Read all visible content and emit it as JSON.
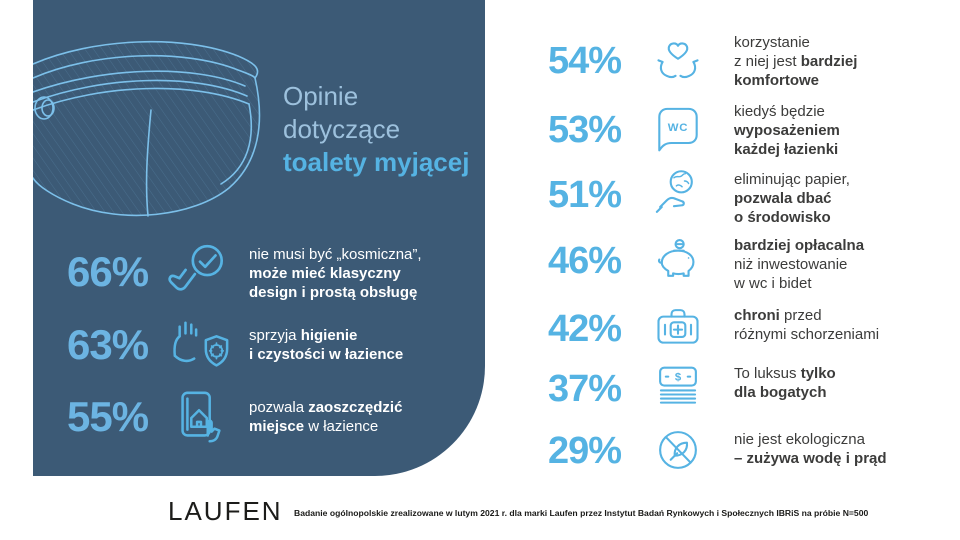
{
  "colors": {
    "panel_bg": "#3c5a76",
    "accent": "#56b3e3",
    "panel_pct": "#6cb4e2",
    "title_muted": "#9dc1dd",
    "body_text": "#3c3c3b",
    "footer_text": "#1a1a18"
  },
  "panel": {
    "title_lines": [
      "Opinie",
      "dotyczące"
    ],
    "title_bold": "toalety myjącej",
    "stats": [
      {
        "pct": "66%",
        "icon": "click-check-icon",
        "lines": [
          [
            {
              "t": "nie musi być „kosmiczna”,",
              "b": false
            }
          ],
          [
            {
              "t": "może mieć klasyczny",
              "b": true
            }
          ],
          [
            {
              "t": "design i prostą obsługę",
              "b": true
            }
          ]
        ]
      },
      {
        "pct": "63%",
        "icon": "hand-shield-icon",
        "lines": [
          [
            {
              "t": "sprzyja ",
              "b": false
            },
            {
              "t": "higienie",
              "b": true
            }
          ],
          [
            {
              "t": "i czystości w łazience",
              "b": true
            }
          ]
        ]
      },
      {
        "pct": "55%",
        "icon": "phone-house-icon",
        "lines": [
          [
            {
              "t": "pozwala ",
              "b": false
            },
            {
              "t": "zaoszczędzić",
              "b": true
            }
          ],
          [
            {
              "t": "miejsce",
              "b": true
            },
            {
              "t": " w łazience",
              "b": false
            }
          ]
        ]
      }
    ]
  },
  "right_stats": [
    {
      "pct": "54%",
      "icon": "hands-heart-icon",
      "lines": [
        [
          {
            "t": "korzystanie",
            "b": false
          }
        ],
        [
          {
            "t": "z niej jest ",
            "b": false
          },
          {
            "t": "bardziej",
            "b": true
          }
        ],
        [
          {
            "t": "komfortowe",
            "b": true
          }
        ]
      ]
    },
    {
      "pct": "53%",
      "icon": "wc-sign-icon",
      "lines": [
        [
          {
            "t": "kiedyś będzie",
            "b": false
          }
        ],
        [
          {
            "t": "wyposażeniem",
            "b": true
          }
        ],
        [
          {
            "t": "każdej łazienki",
            "b": true
          }
        ]
      ]
    },
    {
      "pct": "51%",
      "icon": "globe-hand-icon",
      "lines": [
        [
          {
            "t": "eliminując papier,",
            "b": false
          }
        ],
        [
          {
            "t": "pozwala dbać",
            "b": true
          }
        ],
        [
          {
            "t": "o środowisko",
            "b": true
          }
        ]
      ]
    },
    {
      "pct": "46%",
      "icon": "piggy-bank-icon",
      "lines": [
        [
          {
            "t": "bardziej opłacalna",
            "b": true
          }
        ],
        [
          {
            "t": "niż inwestowanie",
            "b": false
          }
        ],
        [
          {
            "t": "w wc i bidet",
            "b": false
          }
        ]
      ]
    },
    {
      "pct": "42%",
      "icon": "first-aid-icon",
      "lines": [
        [
          {
            "t": "chroni",
            "b": true
          },
          {
            "t": " przed",
            "b": false
          }
        ],
        [
          {
            "t": "różnymi schorzeniami",
            "b": false
          }
        ]
      ]
    },
    {
      "pct": "37%",
      "icon": "money-icon",
      "lines": [
        [
          {
            "t": "To luksus ",
            "b": false
          },
          {
            "t": "tylko",
            "b": true
          }
        ],
        [
          {
            "t": "dla bogatych",
            "b": true
          }
        ]
      ]
    },
    {
      "pct": "29%",
      "icon": "no-eco-icon",
      "lines": [
        [
          {
            "t": "nie jest ekologiczna",
            "b": false
          }
        ],
        [
          {
            "t": "– zużywa wodę i prąd",
            "b": true
          }
        ]
      ]
    }
  ],
  "icon_labels": {
    "wc": "WC",
    "dollar": "$"
  },
  "footer": {
    "logo": "LAUFEN",
    "note": "Badanie ogólnopolskie zrealizowane w lutym 2021 r. dla marki Laufen przez Instytut Badań Rynkowych i Społecznych IBRiS na próbie N=500"
  },
  "chart_data": {
    "type": "bar",
    "title": "Opinie dotyczące toalety myjącej",
    "categories": [
      "nie musi być „kosmiczna”, może mieć klasyczny design i prostą obsługę",
      "sprzyja higienie i czystości w łazience",
      "pozwala zaoszczędzić miejsce w łazience",
      "korzystanie z niej jest bardziej komfortowe",
      "kiedyś będzie wyposażeniem każdej łazienki",
      "eliminując papier, pozwala dbać o środowisko",
      "bardziej opłacalna niż inwestowanie w wc i bidet",
      "chroni przed różnymi schorzeniami",
      "To luksus tylko dla bogatych",
      "nie jest ekologiczna – zużywa wodę i prąd"
    ],
    "values": [
      66,
      63,
      55,
      54,
      53,
      51,
      46,
      42,
      37,
      29
    ],
    "unit": "%",
    "source": "Badanie ogólnopolskie zrealizowane w lutym 2021 r. dla marki Laufen przez Instytut Badań Rynkowych i Społecznych IBRiS na próbie N=500"
  }
}
